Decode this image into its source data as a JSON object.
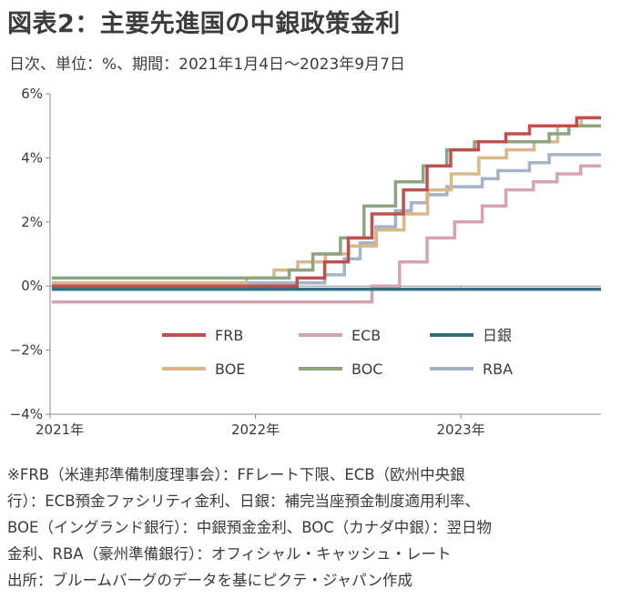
{
  "title": "図表2：主要先進国の中銀政策金利",
  "subtitle": "日次、単位：%、期間：2021年1月4日～2023年9月7日",
  "chart_data": {
    "type": "line",
    "step": true,
    "x_start": "2021-01-04",
    "x_end": "2023-09-07",
    "xlim": [
      "2021-01-01",
      "2023-09-07"
    ],
    "ylim": [
      -4,
      6
    ],
    "grid": false,
    "legend_position": "center-bottom",
    "x_tick_labels": [
      {
        "date": "2021-01-01",
        "label": "2021年"
      },
      {
        "date": "2022-01-01",
        "label": "2022年"
      },
      {
        "date": "2023-01-01",
        "label": "2023年"
      }
    ],
    "y_ticks": [
      {
        "value": 6,
        "label": "6%"
      },
      {
        "value": 4,
        "label": "4%"
      },
      {
        "value": 2,
        "label": "2%"
      },
      {
        "value": 0,
        "label": "0%"
      },
      {
        "value": -2,
        "label": "−2%"
      },
      {
        "value": -4,
        "label": "−4%"
      }
    ],
    "series": [
      {
        "name": "FRB",
        "color": "#c0504d",
        "points": [
          [
            "2021-01-04",
            0.0
          ],
          [
            "2022-03-16",
            0.25
          ],
          [
            "2022-05-04",
            0.75
          ],
          [
            "2022-06-15",
            1.5
          ],
          [
            "2022-07-27",
            2.25
          ],
          [
            "2022-09-21",
            3.0
          ],
          [
            "2022-11-02",
            3.75
          ],
          [
            "2022-12-14",
            4.25
          ],
          [
            "2023-02-01",
            4.5
          ],
          [
            "2023-03-22",
            4.75
          ],
          [
            "2023-05-03",
            5.0
          ],
          [
            "2023-07-26",
            5.25
          ],
          [
            "2023-09-07",
            5.25
          ]
        ]
      },
      {
        "name": "ECB",
        "color": "#d4a5b0",
        "points": [
          [
            "2021-01-04",
            -0.5
          ],
          [
            "2022-07-27",
            0.0
          ],
          [
            "2022-09-14",
            0.75
          ],
          [
            "2022-11-02",
            1.5
          ],
          [
            "2022-12-21",
            2.0
          ],
          [
            "2023-02-08",
            2.5
          ],
          [
            "2023-03-22",
            3.0
          ],
          [
            "2023-05-10",
            3.25
          ],
          [
            "2023-06-21",
            3.5
          ],
          [
            "2023-08-02",
            3.75
          ],
          [
            "2023-09-07",
            3.75
          ]
        ]
      },
      {
        "name": "日銀",
        "color": "#31707f",
        "points": [
          [
            "2021-01-04",
            -0.1
          ],
          [
            "2023-09-07",
            -0.1
          ]
        ]
      },
      {
        "name": "BOE",
        "color": "#d8b888",
        "points": [
          [
            "2021-01-04",
            0.1
          ],
          [
            "2021-12-16",
            0.25
          ],
          [
            "2022-02-03",
            0.5
          ],
          [
            "2022-03-17",
            0.75
          ],
          [
            "2022-05-05",
            1.0
          ],
          [
            "2022-06-16",
            1.25
          ],
          [
            "2022-08-04",
            1.75
          ],
          [
            "2022-09-22",
            2.25
          ],
          [
            "2022-11-03",
            3.0
          ],
          [
            "2022-12-15",
            3.5
          ],
          [
            "2023-02-02",
            4.0
          ],
          [
            "2023-03-23",
            4.25
          ],
          [
            "2023-05-11",
            4.5
          ],
          [
            "2023-06-22",
            5.0
          ],
          [
            "2023-08-03",
            5.25
          ],
          [
            "2023-09-07",
            5.25
          ]
        ]
      },
      {
        "name": "BOC",
        "color": "#8ea47e",
        "points": [
          [
            "2021-01-04",
            0.25
          ],
          [
            "2022-03-02",
            0.5
          ],
          [
            "2022-04-13",
            1.0
          ],
          [
            "2022-06-01",
            1.5
          ],
          [
            "2022-07-13",
            2.5
          ],
          [
            "2022-09-07",
            3.25
          ],
          [
            "2022-10-26",
            3.75
          ],
          [
            "2022-12-07",
            4.25
          ],
          [
            "2023-01-25",
            4.5
          ],
          [
            "2023-06-07",
            4.75
          ],
          [
            "2023-07-12",
            5.0
          ],
          [
            "2023-09-07",
            5.0
          ]
        ]
      },
      {
        "name": "RBA",
        "color": "#a3b4c8",
        "points": [
          [
            "2021-01-04",
            0.1
          ],
          [
            "2022-05-04",
            0.35
          ],
          [
            "2022-06-08",
            0.85
          ],
          [
            "2022-07-06",
            1.35
          ],
          [
            "2022-08-03",
            1.85
          ],
          [
            "2022-09-07",
            2.35
          ],
          [
            "2022-10-05",
            2.6
          ],
          [
            "2022-11-02",
            2.85
          ],
          [
            "2022-12-07",
            3.1
          ],
          [
            "2023-02-08",
            3.35
          ],
          [
            "2023-03-08",
            3.6
          ],
          [
            "2023-05-03",
            3.85
          ],
          [
            "2023-06-07",
            4.1
          ],
          [
            "2023-09-07",
            4.1
          ]
        ]
      }
    ]
  },
  "notes": [
    "※FRB（米連邦準備制度理事会）：FFレート下限、ECB（欧州中央銀",
    "行）：ECB預金ファシリティ金利、日銀：補完当座預金制度適用利率、",
    "BOE（イングランド銀行）：中銀預金金利、BOC（カナダ中銀）：翌日物",
    "金利、RBA（豪州準備銀行）：オフィシャル・キャッシュ・レート",
    "出所：ブルームバーグのデータを基にピクテ・ジャパン作成"
  ]
}
